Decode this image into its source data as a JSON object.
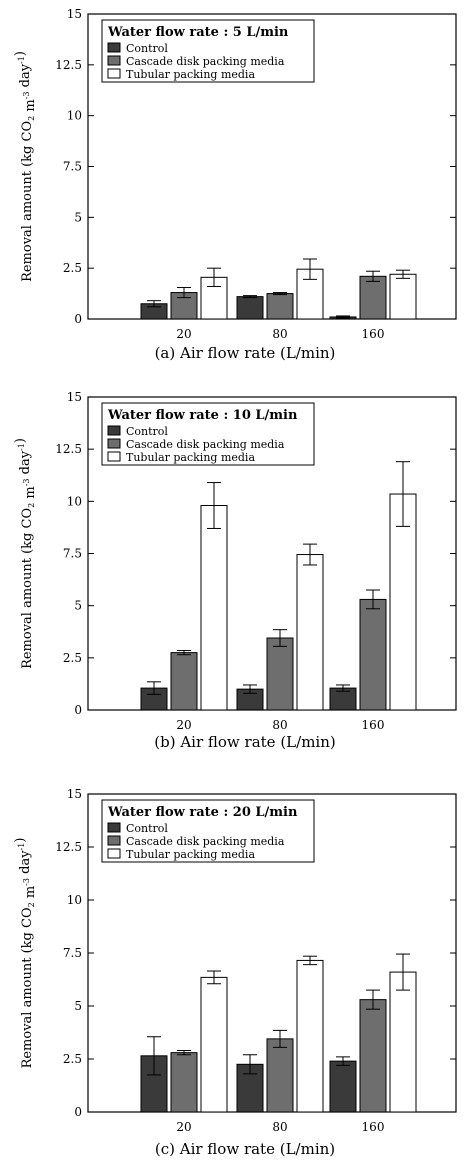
{
  "chart_data": [
    {
      "type": "bar",
      "caption": "(a)  Air flow rate (L/min)",
      "legend_title": "Water flow rate : 5 L/min",
      "ylabel": "Removal amount (kg CO2 m-3 day-1)",
      "categories": [
        "20",
        "80",
        "160"
      ],
      "ylim": [
        0,
        15
      ],
      "yticks": [
        "0",
        "2.5",
        "5",
        "7.5",
        "10",
        "12.5",
        "15"
      ],
      "series": [
        {
          "name": "Control",
          "color": "#3a3a3a",
          "values": [
            0.75,
            1.1,
            0.1
          ],
          "errors": [
            0.15,
            0.05,
            0.05
          ]
        },
        {
          "name": "Cascade disk packing media",
          "color": "#6e6e6e",
          "values": [
            1.3,
            1.25,
            2.1
          ],
          "errors": [
            0.25,
            0.05,
            0.25
          ]
        },
        {
          "name": "Tubular packing media",
          "color": "#ffffff",
          "values": [
            2.05,
            2.45,
            2.2
          ],
          "errors": [
            0.45,
            0.5,
            0.2
          ]
        }
      ]
    },
    {
      "type": "bar",
      "caption": "(b)  Air flow rate (L/min)",
      "legend_title": "Water flow rate : 10 L/min",
      "ylabel": "Removal amount (kg CO2 m-3 day-1)",
      "categories": [
        "20",
        "80",
        "160"
      ],
      "ylim": [
        0,
        15
      ],
      "yticks": [
        "0",
        "2.5",
        "5",
        "7.5",
        "10",
        "12.5",
        "15"
      ],
      "series": [
        {
          "name": "Control",
          "color": "#3a3a3a",
          "values": [
            1.05,
            1.0,
            1.05
          ],
          "errors": [
            0.3,
            0.2,
            0.15
          ]
        },
        {
          "name": "Cascade disk packing media",
          "color": "#6e6e6e",
          "values": [
            2.75,
            3.45,
            5.3
          ],
          "errors": [
            0.1,
            0.4,
            0.45
          ]
        },
        {
          "name": "Tubular packing media",
          "color": "#ffffff",
          "values": [
            9.8,
            7.45,
            10.35
          ],
          "errors": [
            1.1,
            0.5,
            1.55
          ]
        }
      ]
    },
    {
      "type": "bar",
      "caption": "(c)  Air flow rate (L/min)",
      "legend_title": "Water flow rate : 20 L/min",
      "ylabel": "Removal amount (kg CO2 m-3 day-1)",
      "categories": [
        "20",
        "80",
        "160"
      ],
      "ylim": [
        0,
        15
      ],
      "yticks": [
        "0",
        "2.5",
        "5",
        "7.5",
        "10",
        "12.5",
        "15"
      ],
      "series": [
        {
          "name": "Control",
          "color": "#3a3a3a",
          "values": [
            2.65,
            2.25,
            2.4
          ],
          "errors": [
            0.9,
            0.45,
            0.2
          ]
        },
        {
          "name": "Cascade disk packing media",
          "color": "#6e6e6e",
          "values": [
            2.8,
            3.45,
            5.3
          ],
          "errors": [
            0.1,
            0.4,
            0.45
          ]
        },
        {
          "name": "Tubular packing media",
          "color": "#ffffff",
          "values": [
            6.35,
            7.15,
            6.6
          ],
          "errors": [
            0.3,
            0.2,
            0.85
          ]
        }
      ]
    }
  ]
}
